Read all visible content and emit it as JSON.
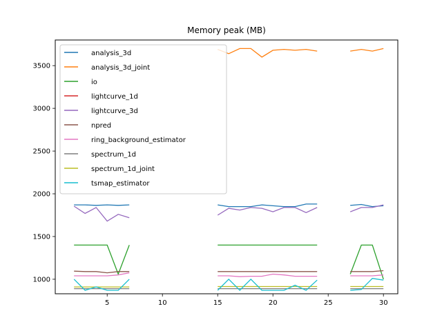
{
  "chart_data": {
    "type": "line",
    "title": "Memory peak (MB)",
    "xlabel": "",
    "ylabel": "",
    "xlim": [
      0.3,
      31.3
    ],
    "ylim": [
      830,
      3800
    ],
    "xticks": [
      5,
      10,
      15,
      20,
      25,
      30
    ],
    "yticks": [
      1000,
      1500,
      2000,
      2500,
      3000,
      3500
    ],
    "grid": false,
    "legend": "upper-left",
    "x": [
      2,
      3,
      4,
      5,
      6,
      7,
      8,
      9,
      10,
      11,
      12,
      13,
      14,
      15,
      16,
      17,
      18,
      19,
      20,
      21,
      22,
      23,
      24,
      25,
      26,
      27,
      28,
      29,
      30
    ],
    "series": [
      {
        "name": "analysis_3d",
        "color": "#1f77b4",
        "values": [
          1870,
          1870,
          1865,
          1870,
          1865,
          1870,
          null,
          null,
          null,
          null,
          null,
          null,
          null,
          1870,
          1850,
          1850,
          1850,
          1870,
          1860,
          1850,
          1850,
          1880,
          1880,
          null,
          null,
          1865,
          1875,
          1850,
          1860
        ]
      },
      {
        "name": "analysis_3d_joint",
        "color": "#ff7f0e",
        "values": [
          null,
          null,
          null,
          null,
          null,
          null,
          null,
          null,
          null,
          null,
          null,
          null,
          null,
          3690,
          3640,
          3700,
          3700,
          3600,
          3680,
          3690,
          3680,
          3690,
          3670,
          null,
          null,
          3670,
          3690,
          3670,
          3700
        ]
      },
      {
        "name": "io",
        "color": "#2ca02c",
        "values": [
          1400,
          1400,
          1400,
          1400,
          1060,
          1400,
          null,
          null,
          null,
          null,
          null,
          null,
          null,
          1400,
          1400,
          1400,
          1400,
          1400,
          1400,
          1400,
          1400,
          1400,
          1400,
          null,
          null,
          1060,
          1400,
          1400,
          1000
        ]
      },
      {
        "name": "lightcurve_1d",
        "color": "#d62728",
        "values": [
          null,
          null,
          null,
          null,
          null,
          null,
          null,
          null,
          null,
          null,
          null,
          null,
          null,
          null,
          null,
          null,
          null,
          null,
          null,
          null,
          null,
          null,
          null,
          null,
          null,
          null,
          null,
          null,
          null
        ]
      },
      {
        "name": "lightcurve_3d",
        "color": "#9467bd",
        "values": [
          1855,
          1770,
          1840,
          1680,
          1760,
          1720,
          null,
          null,
          null,
          null,
          null,
          null,
          null,
          1750,
          1830,
          1810,
          1840,
          1830,
          1790,
          1840,
          1840,
          1780,
          1840,
          null,
          null,
          1790,
          1840,
          1840,
          1870
        ]
      },
      {
        "name": "npred",
        "color": "#8c564b",
        "values": [
          1095,
          1090,
          1090,
          1075,
          1090,
          1090,
          null,
          null,
          null,
          null,
          null,
          null,
          null,
          1090,
          1090,
          1090,
          1090,
          1090,
          1090,
          1090,
          1090,
          1090,
          1090,
          null,
          null,
          1090,
          1090,
          1090,
          1100
        ]
      },
      {
        "name": "ring_background_estimator",
        "color": "#e377c2",
        "values": [
          1040,
          1040,
          1040,
          1040,
          1050,
          1075,
          null,
          null,
          null,
          null,
          null,
          null,
          null,
          1040,
          1040,
          1030,
          1035,
          1035,
          1060,
          1050,
          1035,
          1035,
          1035,
          null,
          null,
          1040,
          1040,
          1040,
          1050
        ]
      },
      {
        "name": "spectrum_1d",
        "color": "#7f7f7f",
        "values": [
          890,
          890,
          890,
          890,
          890,
          890,
          null,
          null,
          null,
          null,
          null,
          null,
          null,
          890,
          890,
          890,
          890,
          890,
          890,
          890,
          890,
          890,
          890,
          null,
          null,
          890,
          890,
          890,
          890
        ]
      },
      {
        "name": "spectrum_1d_joint",
        "color": "#bcbd22",
        "values": [
          910,
          910,
          910,
          910,
          910,
          910,
          null,
          null,
          null,
          null,
          null,
          null,
          null,
          915,
          915,
          915,
          915,
          915,
          915,
          915,
          915,
          915,
          915,
          null,
          null,
          915,
          915,
          915,
          915
        ]
      },
      {
        "name": "tsmap_estimator",
        "color": "#17becf",
        "values": [
          1000,
          870,
          910,
          870,
          870,
          1000,
          null,
          null,
          null,
          null,
          null,
          null,
          null,
          870,
          1000,
          870,
          1000,
          870,
          870,
          870,
          930,
          870,
          990,
          null,
          null,
          870,
          880,
          1010,
          990
        ]
      }
    ]
  }
}
